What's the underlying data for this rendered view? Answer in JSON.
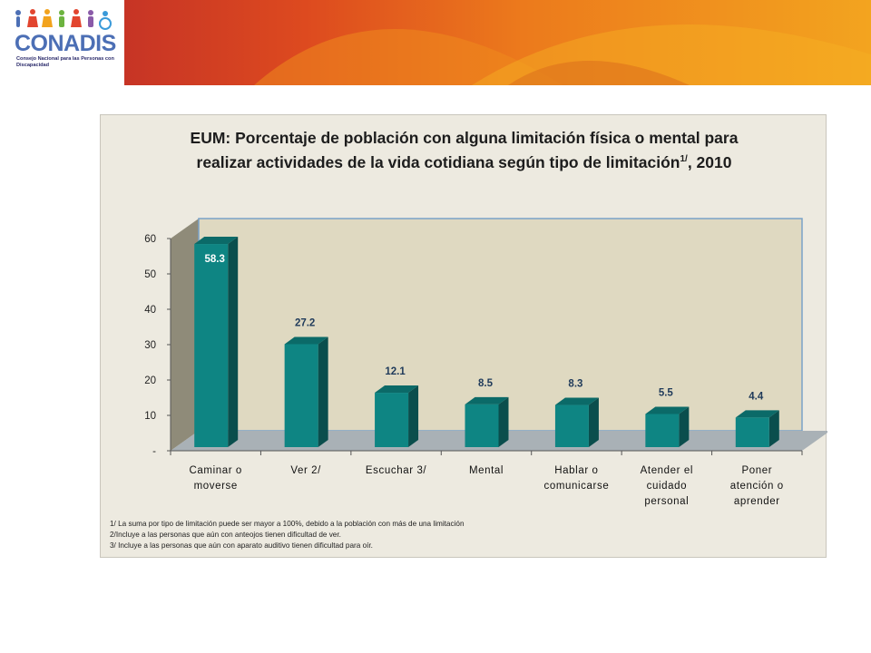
{
  "logo": {
    "name": "CONADIS",
    "subtitle": "Consejo Nacional para las Personas con Discapacidad"
  },
  "chart_data": {
    "type": "bar",
    "title_line1": "EUM: Porcentaje de población con alguna limitación física o mental para",
    "title_line2": "realizar actividades de la vida cotidiana según tipo de limitación",
    "title_sup": "1/",
    "title_year": ", 2010",
    "categories": [
      [
        "Caminar o",
        "moverse"
      ],
      [
        "Ver 2/"
      ],
      [
        "Escuchar 3/"
      ],
      [
        "Mental"
      ],
      [
        "Hablar o",
        "comunicarse"
      ],
      [
        "Atender el",
        "cuidado",
        "personal"
      ],
      [
        "Poner",
        "atención o",
        "aprender"
      ]
    ],
    "values": [
      58.3,
      27.2,
      12.1,
      8.5,
      8.3,
      5.5,
      4.4
    ],
    "value_labels": [
      "58.3",
      "27.2",
      "12.1",
      "8.5",
      "8.3",
      "5.5",
      "4.4"
    ],
    "ylim": [
      0,
      60
    ],
    "yticks": [
      {
        "value": 0,
        "label": "-"
      },
      {
        "value": 10,
        "label": "10"
      },
      {
        "value": 20,
        "label": "20"
      },
      {
        "value": 30,
        "label": "30"
      },
      {
        "value": 40,
        "label": "40"
      },
      {
        "value": 50,
        "label": "50"
      },
      {
        "value": 60,
        "label": "60"
      }
    ],
    "grid": false,
    "legend": "none",
    "bar_color": "#0e8583",
    "notes": [
      "1/ La suma por tipo de limitación puede ser mayor a 100%, debido a la población con más de una limitación",
      "2/Incluye a las personas que aún con anteojos tienen dificultad de ver.",
      "3/ Incluye a las personas que aún con aparato auditivo tienen dificultad para oír."
    ]
  }
}
